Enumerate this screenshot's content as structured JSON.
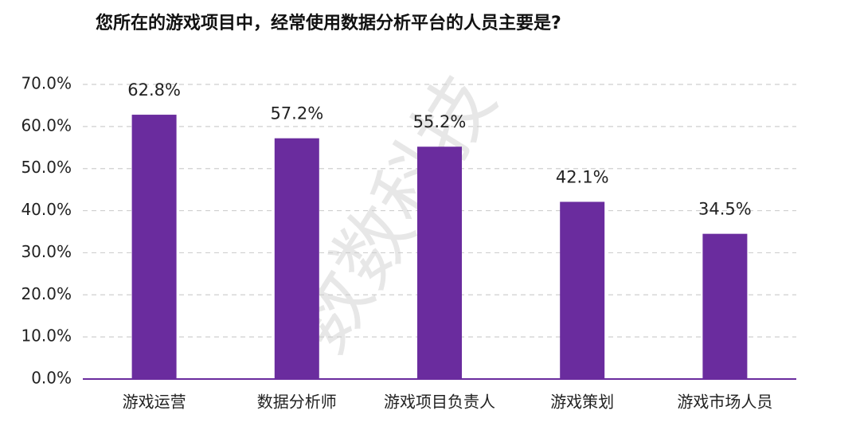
{
  "chart_data": {
    "type": "bar",
    "title": "您所在的游戏项目中，经常使用数据分析平台的人员主要是?",
    "watermark": "数数科技",
    "categories": [
      "游戏运营",
      "数据分析师",
      "游戏项目负责人",
      "游戏策划",
      "游戏市场人员"
    ],
    "values": [
      62.8,
      57.2,
      55.2,
      42.1,
      34.5
    ],
    "value_labels": [
      "62.8%",
      "57.2%",
      "55.2%",
      "42.1%",
      "34.5%"
    ],
    "color": "#6a2c9e",
    "ylim": [
      0,
      70
    ],
    "yticks": [
      {
        "value": 0,
        "label": "0.0%"
      },
      {
        "value": 10,
        "label": "10.0%"
      },
      {
        "value": 20,
        "label": "20.0%"
      },
      {
        "value": 30,
        "label": "30.0%"
      },
      {
        "value": 40,
        "label": "40.0%"
      },
      {
        "value": 50,
        "label": "50.0%"
      },
      {
        "value": 60,
        "label": "60.0%"
      },
      {
        "value": 70,
        "label": "70.0%"
      }
    ],
    "grid": true
  }
}
